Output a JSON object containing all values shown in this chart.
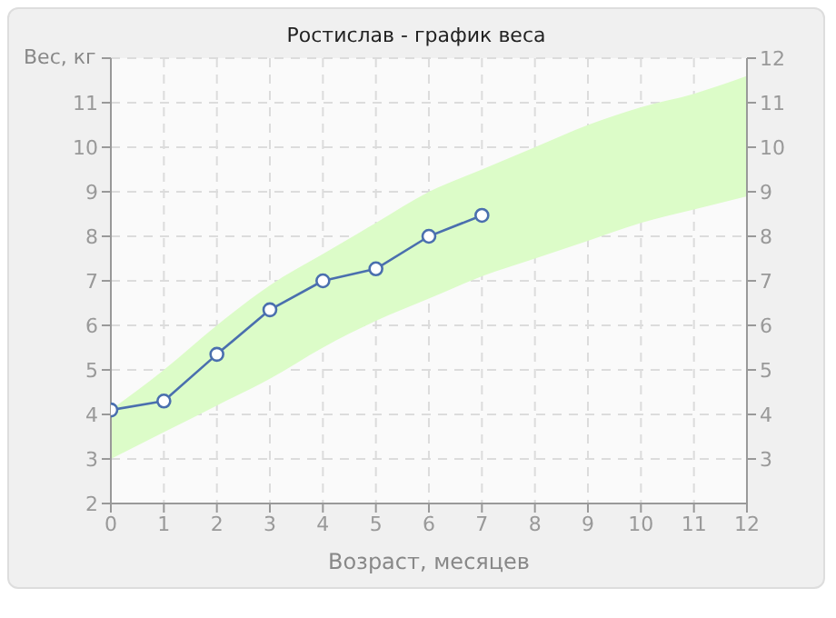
{
  "chart_data": {
    "type": "line",
    "title": "Ростислав - график веса",
    "xlabel": "Возраст, месяцев",
    "ylabel": "Вес, кг",
    "xlim": [
      0,
      12
    ],
    "xticks": [
      0,
      1,
      2,
      3,
      4,
      5,
      6,
      7,
      8,
      9,
      10,
      11,
      12
    ],
    "ylim": [
      2,
      12
    ],
    "yticks": [
      2,
      3,
      4,
      5,
      6,
      7,
      8,
      9,
      10,
      11,
      {
        "value": 12,
        "label": null
      }
    ],
    "y2lim": [
      2,
      12
    ],
    "y2ticks": [
      3,
      4,
      5,
      6,
      7,
      8,
      9,
      10,
      11,
      12
    ],
    "grid": true,
    "line_style": "solid",
    "marker": "circle",
    "series": [
      {
        "color": "#4a6fae",
        "x": [
          0,
          1,
          2,
          3,
          4,
          5,
          6,
          7,
          8,
          9,
          10,
          11,
          12
        ],
        "values": [
          4.1,
          4.3,
          5.35,
          6.35,
          7.0,
          7.27,
          8.0,
          8.47,
          null,
          null,
          null,
          null,
          null
        ],
        "lower": [
          3.0,
          3.6,
          4.2,
          4.8,
          5.5,
          6.1,
          6.6,
          7.1,
          7.5,
          7.9,
          8.3,
          8.6,
          8.9
        ],
        "upper": [
          4.1,
          5.0,
          6.0,
          6.9,
          7.6,
          8.3,
          9.0,
          9.5,
          10.0,
          10.5,
          10.9,
          11.2,
          11.6
        ]
      }
    ]
  }
}
